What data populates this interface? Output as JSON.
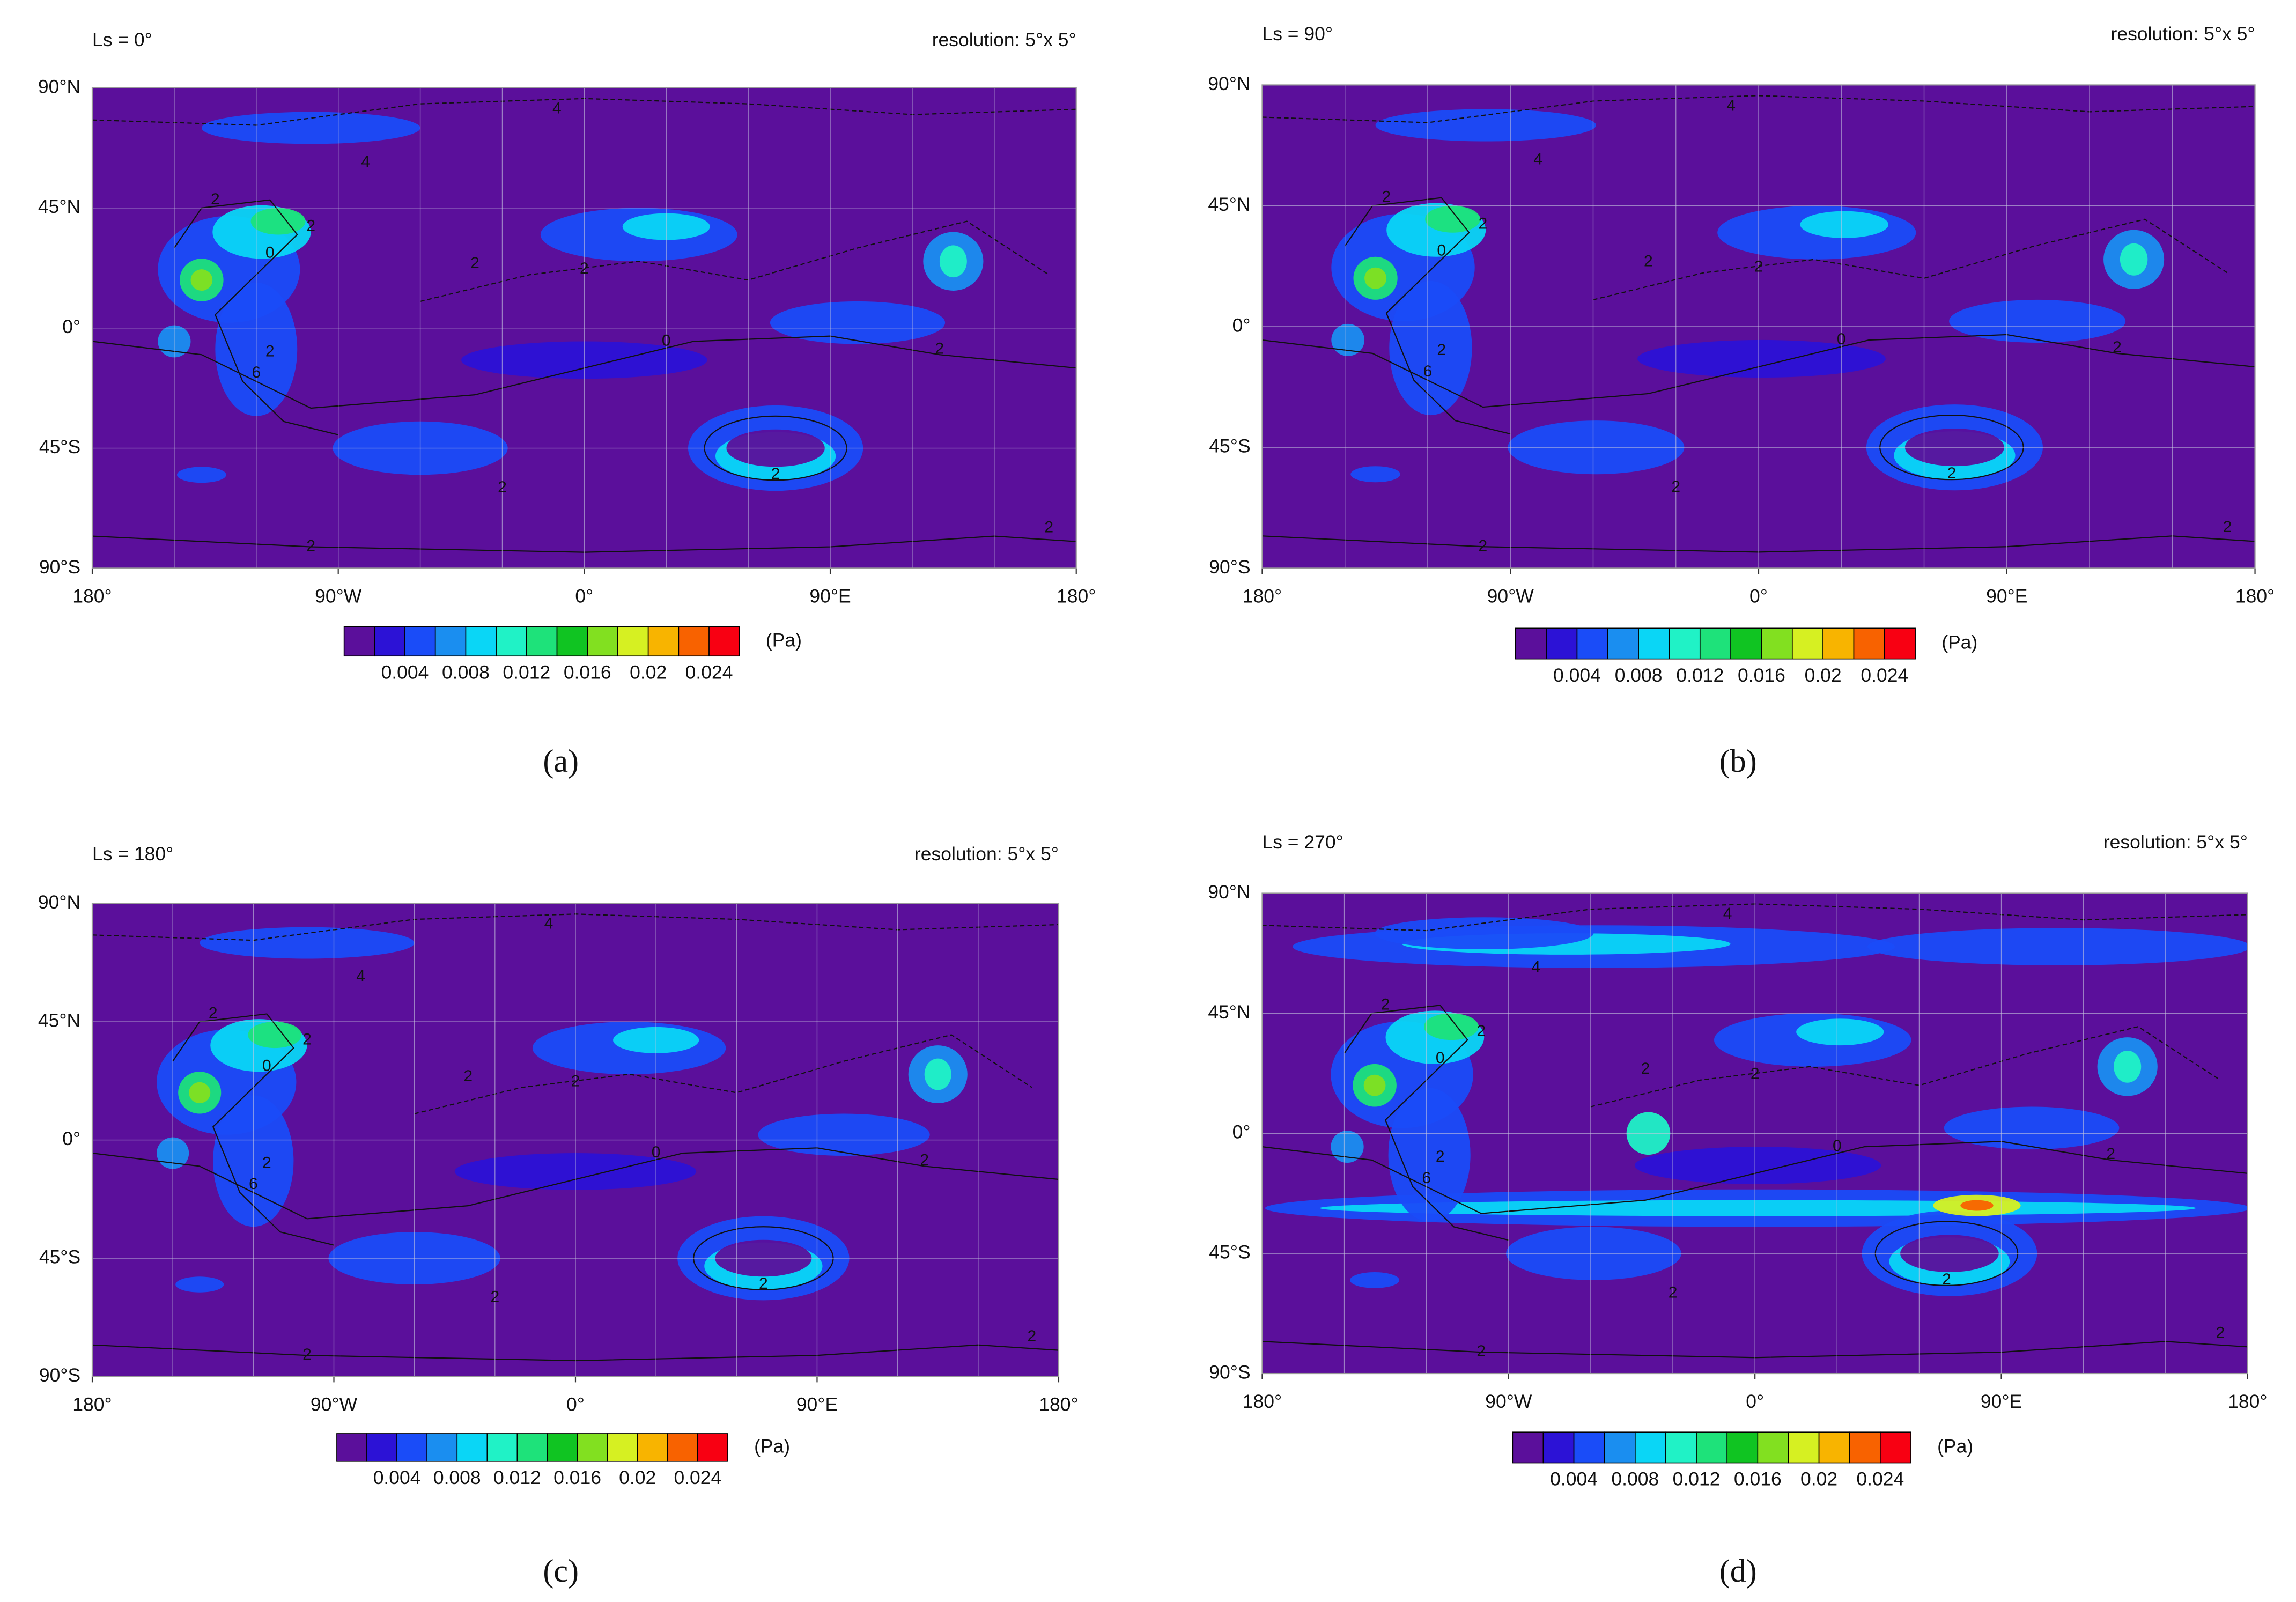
{
  "panels": [
    {
      "title": "Ls = 0°",
      "resolution": "resolution: 5°x 5°",
      "label": "(a)",
      "contour_labels": [
        "4",
        "4",
        "2",
        "2",
        "0",
        "2",
        "6",
        "2",
        "0",
        "2",
        "2",
        "2",
        "2",
        "2",
        "2"
      ]
    },
    {
      "title": "Ls = 90°",
      "resolution": "resolution: 5°x 5°",
      "label": "(b)",
      "contour_labels": [
        "4",
        "4",
        "2",
        "2",
        "0",
        "2",
        "6",
        "2",
        "0",
        "2",
        "2",
        "2",
        "2",
        "2",
        "2"
      ]
    },
    {
      "title": "Ls = 180°",
      "resolution": "resolution: 5°x 5°",
      "label": "(c)",
      "contour_labels": [
        "4",
        "4",
        "2",
        "2",
        "0",
        "2",
        "6",
        "2",
        "0",
        "2",
        "2",
        "2",
        "2",
        "2",
        "2"
      ]
    },
    {
      "title": "Ls = 270°",
      "resolution": "resolution: 5°x 5°",
      "label": "(d)",
      "contour_labels": [
        "4",
        "4",
        "2",
        "2",
        "0",
        "2",
        "6",
        "2",
        "0",
        "2",
        "2",
        "2",
        "2",
        "2",
        "2"
      ]
    }
  ],
  "map_axes": {
    "xlim": [
      -180,
      180
    ],
    "ylim": [
      -90,
      90
    ],
    "yticks": [
      {
        "value": 90,
        "label": "90°N"
      },
      {
        "value": 45,
        "label": "45°N"
      },
      {
        "value": 0,
        "label": "0°"
      },
      {
        "value": -45,
        "label": "45°S"
      },
      {
        "value": -90,
        "label": "90°S"
      }
    ],
    "xticks": [
      {
        "value": -180,
        "label": "180°"
      },
      {
        "value": -90,
        "label": "90°W"
      },
      {
        "value": 0,
        "label": "0°"
      },
      {
        "value": 90,
        "label": "90°E"
      },
      {
        "value": 180,
        "label": "180°"
      }
    ],
    "grid": true
  },
  "colorbar": {
    "lim": [
      0,
      0.026
    ],
    "ticks": [
      0.004,
      0.008,
      0.012,
      0.016,
      0.02,
      0.024
    ],
    "unit": "(Pa)",
    "colors": [
      "#5b0f9b",
      "#2c12d6",
      "#1a4cf8",
      "#1a8ef0",
      "#0ad6f6",
      "#20f2c6",
      "#1ee27a",
      "#10c422",
      "#82e020",
      "#d6f022",
      "#f8b400",
      "#f86200",
      "#f80012"
    ]
  }
}
